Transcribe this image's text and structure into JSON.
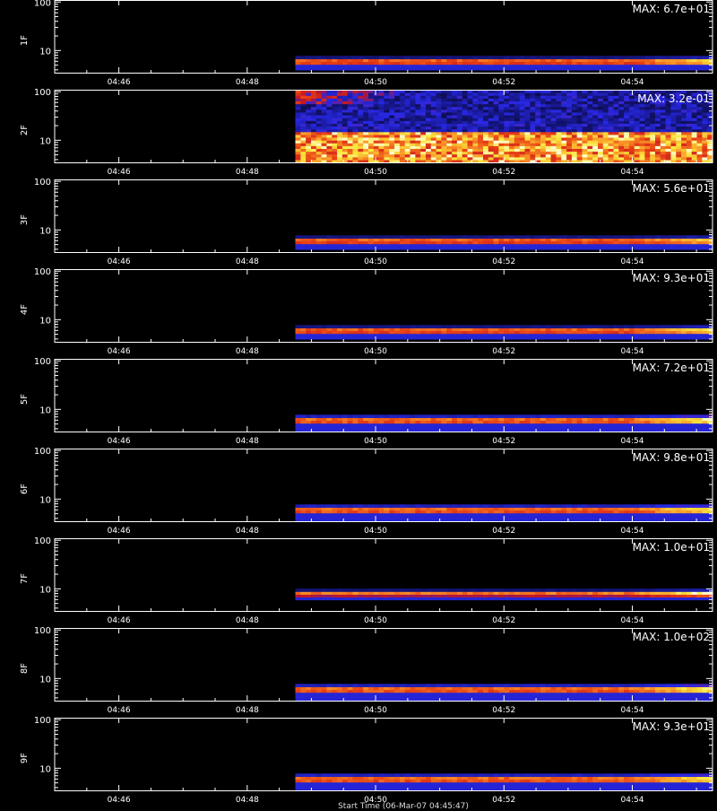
{
  "chart_data": {
    "type": "heatmap",
    "xlabel": "Start Time (06-Mar-07 04:45:47)",
    "x_ticks": [
      "04:46",
      "04:48",
      "04:50",
      "04:52",
      "04:54"
    ],
    "x_tick_minutes": [
      46,
      48,
      50,
      52,
      54
    ],
    "x_range_minutes": [
      45.0,
      55.25
    ],
    "data_start_minutes": 48.75,
    "y_scale": "log",
    "y_range": [
      3.5,
      110
    ],
    "y_ticks": [
      "100",
      "10"
    ],
    "y_tick_values": [
      100,
      10
    ],
    "panels": [
      {
        "name": "1F",
        "max_label": "MAX: 6.7e+01",
        "band_center": 6.0,
        "band_halfwidth_decades": 0.07,
        "brightening": 0.7
      },
      {
        "name": "2F",
        "max_label": "MAX: 3.2e-01",
        "noise": true
      },
      {
        "name": "3F",
        "max_label": "MAX: 5.6e+01",
        "band_center": 6.0,
        "band_halfwidth_decades": 0.07,
        "brightening": 0.6
      },
      {
        "name": "4F",
        "max_label": "MAX: 9.3e+01",
        "band_center": 6.0,
        "band_halfwidth_decades": 0.07,
        "brightening": 0.7
      },
      {
        "name": "5F",
        "max_label": "MAX: 7.2e+01",
        "band_center": 6.0,
        "band_halfwidth_decades": 0.08,
        "brightening": 0.8
      },
      {
        "name": "6F",
        "max_label": "MAX: 9.8e+01",
        "band_center": 6.0,
        "band_halfwidth_decades": 0.08,
        "brightening": 0.7
      },
      {
        "name": "7F",
        "max_label": "MAX: 1.0e+01",
        "band_center": 8.0,
        "band_halfwidth_decades": 0.06,
        "brightening": 0.9
      },
      {
        "name": "8F",
        "max_label": "MAX: 1.0e+02",
        "band_center": 6.0,
        "band_halfwidth_decades": 0.08,
        "brightening": 0.8
      },
      {
        "name": "9F",
        "max_label": "MAX: 9.3e+01",
        "band_center": 6.0,
        "band_halfwidth_decades": 0.08,
        "brightening": 0.7
      }
    ]
  }
}
